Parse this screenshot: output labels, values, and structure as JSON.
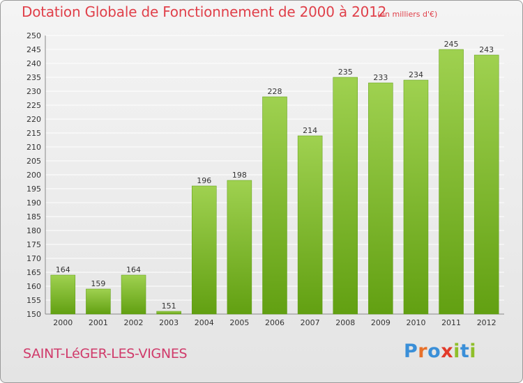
{
  "header": {
    "title": "Dotation Globale de Fonctionnement de 2000 à 2012",
    "unit": "(en milliers d'€)"
  },
  "footer": {
    "commune": "SAINT-LéGER-LES-VIGNES",
    "brand": "Proxiti"
  },
  "colors": {
    "title": "#e0404a",
    "commune": "#d03a6a",
    "bar_top": "#9fd150",
    "bar_bottom": "#62a012",
    "grid": "#ffffff",
    "axis_text": "#333333",
    "brand_letters": [
      "#3a8fd8",
      "#e8712a",
      "#3a8fd8",
      "#e23a2a",
      "#8fbf2a",
      "#3a8fd8",
      "#8fbf2a"
    ]
  },
  "chart_data": {
    "type": "bar",
    "title": "Dotation Globale de Fonctionnement de 2000 à 2012",
    "xlabel": "",
    "ylabel": "",
    "categories": [
      "2000",
      "2001",
      "2002",
      "2003",
      "2004",
      "2005",
      "2006",
      "2007",
      "2008",
      "2009",
      "2010",
      "2011",
      "2012"
    ],
    "values": [
      164,
      159,
      164,
      151,
      196,
      198,
      228,
      214,
      235,
      233,
      234,
      245,
      243
    ],
    "ylim": [
      150,
      250
    ],
    "yticks": [
      150,
      155,
      160,
      165,
      170,
      175,
      180,
      185,
      190,
      195,
      200,
      205,
      210,
      215,
      220,
      225,
      230,
      235,
      240,
      245,
      250
    ],
    "grid": "horizontal",
    "data_labels": true
  }
}
